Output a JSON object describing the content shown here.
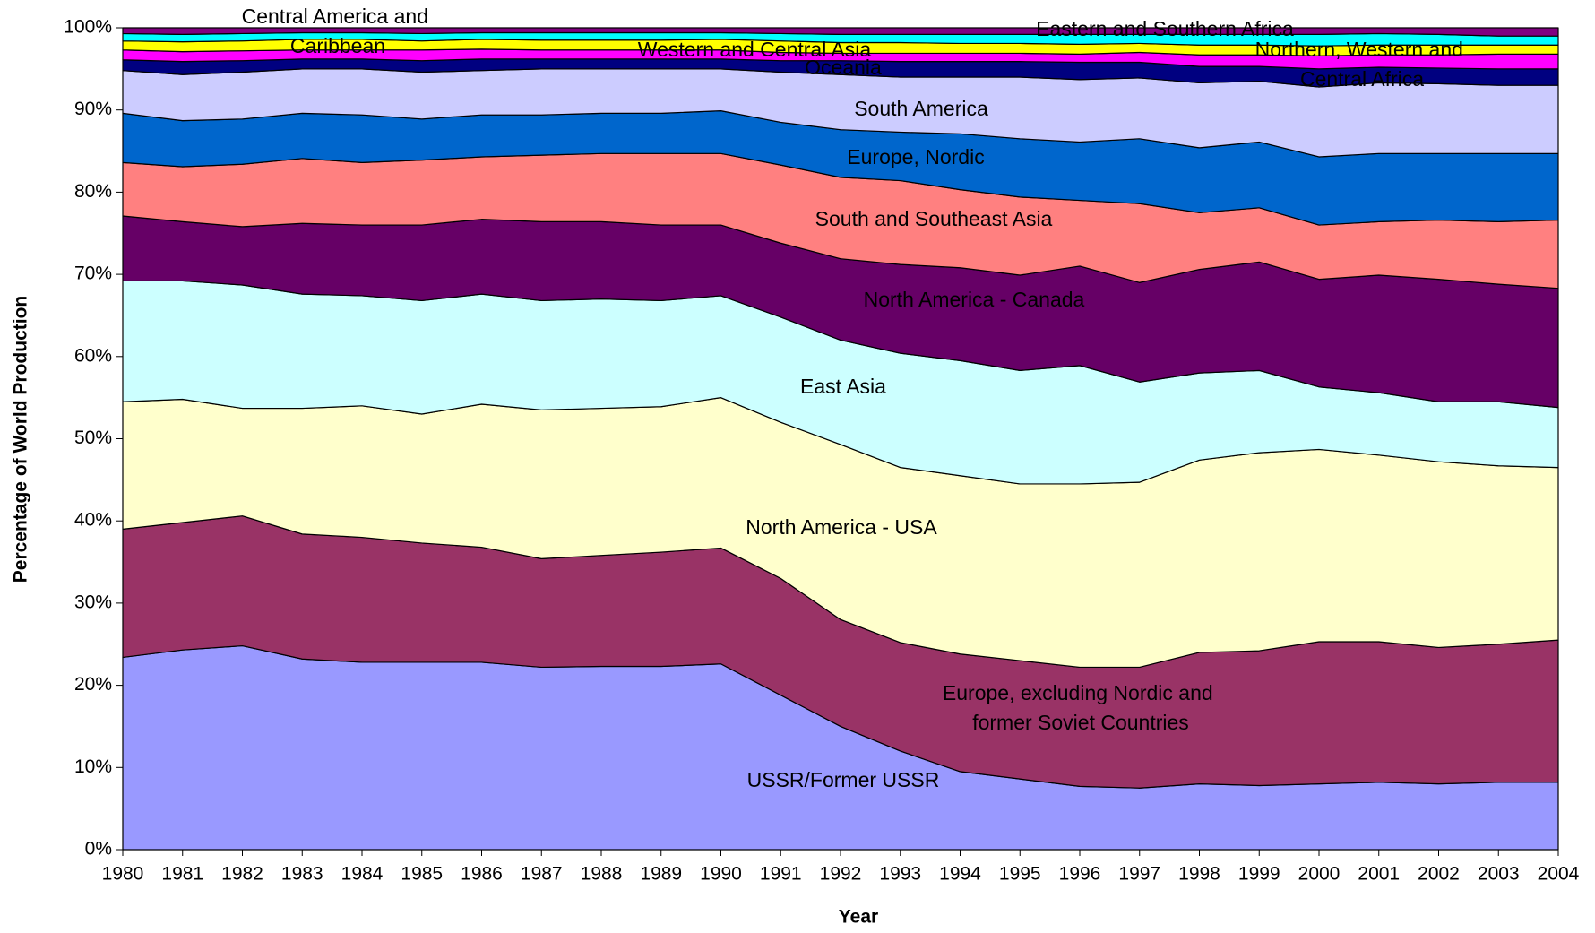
{
  "chart_data": {
    "type": "stacked-area",
    "x_label": "Year",
    "y_label": "Percentage of World Production",
    "x": [
      1980,
      1981,
      1982,
      1983,
      1984,
      1985,
      1986,
      1987,
      1988,
      1989,
      1990,
      1991,
      1992,
      1993,
      1994,
      1995,
      1996,
      1997,
      1998,
      1999,
      2000,
      2001,
      2002,
      2003,
      2004
    ],
    "xlim": [
      1980,
      2004
    ],
    "ylim": [
      0,
      100
    ],
    "yticks": [
      {
        "value": 0,
        "label": "0%"
      },
      {
        "value": 10,
        "label": "10%"
      },
      {
        "value": 20,
        "label": "20%"
      },
      {
        "value": 30,
        "label": "30%"
      },
      {
        "value": 40,
        "label": "40%"
      },
      {
        "value": 50,
        "label": "50%"
      },
      {
        "value": 60,
        "label": "60%"
      },
      {
        "value": 70,
        "label": "70%"
      },
      {
        "value": 80,
        "label": "80%"
      },
      {
        "value": 90,
        "label": "90%"
      },
      {
        "value": 100,
        "label": "100%"
      }
    ],
    "series": [
      {
        "name": "USSR/Former USSR",
        "color": "#9999FF",
        "values": [
          23.4,
          24.3,
          24.8,
          23.2,
          22.8,
          22.8,
          22.8,
          22.2,
          22.3,
          22.3,
          22.6,
          18.8,
          15.0,
          12.0,
          9.5,
          8.6,
          7.7,
          7.5,
          8.0,
          7.8,
          8.0,
          8.2,
          8.0,
          8.2,
          8.2
        ]
      },
      {
        "name": "Europe, excluding Nordic and former Soviet Countries",
        "color": "#993366",
        "values": [
          15.6,
          15.5,
          15.8,
          15.2,
          15.2,
          14.5,
          14.0,
          13.2,
          13.5,
          13.9,
          14.1,
          14.2,
          13.0,
          13.2,
          14.3,
          14.4,
          14.5,
          14.7,
          16.0,
          16.4,
          17.3,
          17.1,
          16.6,
          16.8,
          17.3
        ]
      },
      {
        "name": "North America - USA",
        "color": "#FFFFCC",
        "values": [
          15.5,
          15.0,
          13.1,
          15.3,
          16.0,
          15.7,
          17.4,
          18.1,
          17.9,
          17.7,
          18.3,
          19.0,
          21.3,
          21.3,
          21.7,
          21.5,
          22.3,
          22.5,
          23.4,
          24.1,
          23.4,
          22.7,
          22.6,
          21.7,
          21.0
        ]
      },
      {
        "name": "East Asia",
        "color": "#CCFFFF",
        "values": [
          14.7,
          14.4,
          15.0,
          13.9,
          13.4,
          13.8,
          13.4,
          13.3,
          13.3,
          12.9,
          12.4,
          12.8,
          12.7,
          13.9,
          14.0,
          13.8,
          14.4,
          12.2,
          10.6,
          10.0,
          7.6,
          7.6,
          7.3,
          7.8,
          7.3
        ]
      },
      {
        "name": "North America - Canada",
        "color": "#660066",
        "values": [
          7.9,
          7.2,
          7.1,
          8.6,
          8.6,
          9.2,
          9.1,
          9.6,
          9.4,
          9.2,
          8.6,
          9.0,
          9.9,
          10.8,
          11.3,
          11.6,
          12.1,
          12.1,
          12.6,
          13.2,
          13.1,
          14.3,
          14.9,
          14.3,
          14.5
        ]
      },
      {
        "name": "South and Southeast Asia",
        "color": "#FF8080",
        "values": [
          6.5,
          6.7,
          7.6,
          7.9,
          7.6,
          7.9,
          7.6,
          8.1,
          8.3,
          8.7,
          8.7,
          9.5,
          9.9,
          10.2,
          9.5,
          9.5,
          8.0,
          9.6,
          6.9,
          6.6,
          6.6,
          6.5,
          7.2,
          7.6,
          8.3
        ]
      },
      {
        "name": "Europe, Nordic",
        "color": "#0066CC",
        "values": [
          6.0,
          5.6,
          5.5,
          5.5,
          5.8,
          5.0,
          5.1,
          4.9,
          4.9,
          4.9,
          5.2,
          5.2,
          5.8,
          5.9,
          6.8,
          7.1,
          7.1,
          7.9,
          7.9,
          8.0,
          8.3,
          8.3,
          8.1,
          8.3,
          8.1
        ]
      },
      {
        "name": "South America",
        "color": "#CCCCFF",
        "values": [
          5.2,
          5.6,
          5.7,
          5.4,
          5.6,
          5.7,
          5.4,
          5.6,
          5.4,
          5.4,
          5.1,
          6.1,
          6.7,
          6.7,
          6.9,
          7.5,
          7.6,
          7.4,
          7.9,
          7.4,
          8.5,
          8.6,
          8.5,
          8.3,
          8.3
        ]
      },
      {
        "name": "Oceania",
        "color": "#000080",
        "values": [
          1.3,
          1.6,
          1.4,
          1.2,
          1.2,
          1.4,
          1.4,
          1.2,
          1.2,
          1.2,
          1.2,
          1.4,
          1.7,
          1.9,
          1.9,
          1.9,
          2.1,
          1.9,
          2.0,
          1.8,
          2.2,
          1.9,
          1.9,
          2.0,
          2.0
        ]
      },
      {
        "name": "Western and Central Asia",
        "color": "#FF00FF",
        "values": [
          1.2,
          1.2,
          1.2,
          1.1,
          1.1,
          1.3,
          1.2,
          1.1,
          1.1,
          1.1,
          1.1,
          1.0,
          0.9,
          1.0,
          1.0,
          1.0,
          1.0,
          1.2,
          1.4,
          1.4,
          1.6,
          1.5,
          1.6,
          1.8,
          1.8
        ]
      },
      {
        "name": "Central America and Caribbean",
        "color": "#FFFF00",
        "values": [
          1.1,
          1.2,
          1.2,
          1.3,
          1.3,
          1.1,
          1.2,
          1.2,
          1.2,
          1.2,
          1.3,
          1.4,
          1.3,
          1.3,
          1.2,
          1.2,
          1.2,
          1.1,
          1.2,
          1.2,
          1.2,
          1.2,
          1.2,
          1.1,
          1.1
        ]
      },
      {
        "name": "Eastern and Southern Africa",
        "color": "#00FFFF",
        "values": [
          0.9,
          0.9,
          0.9,
          0.8,
          0.8,
          0.9,
          0.8,
          0.9,
          0.9,
          0.9,
          0.8,
          0.9,
          1.0,
          1.0,
          1.1,
          1.1,
          1.2,
          1.1,
          1.3,
          1.3,
          1.4,
          1.4,
          1.3,
          1.1,
          1.1
        ]
      },
      {
        "name": "Northern, Western and Central Africa",
        "color": "#800080",
        "values": [
          0.7,
          0.8,
          0.7,
          0.6,
          0.6,
          0.7,
          0.6,
          0.6,
          0.6,
          0.6,
          0.6,
          0.7,
          0.8,
          0.8,
          0.8,
          0.8,
          0.8,
          0.8,
          0.8,
          0.8,
          0.8,
          0.7,
          0.8,
          1.0,
          1.0
        ]
      }
    ]
  }
}
